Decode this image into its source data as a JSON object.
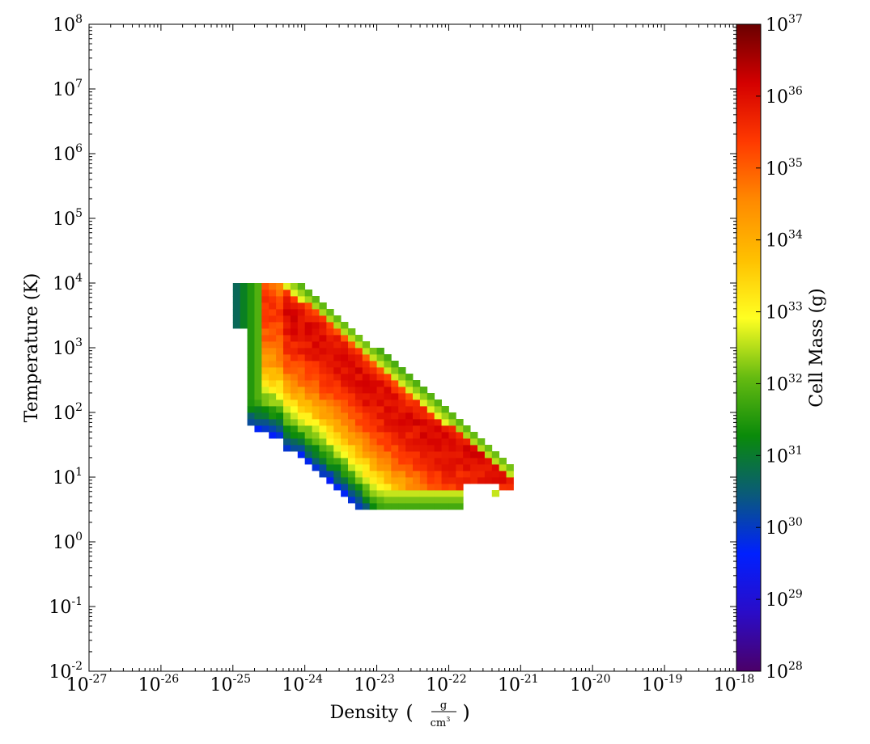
{
  "chart_data": {
    "type": "heatmap",
    "title": "",
    "xlabel": "Density",
    "xunit_num": "g",
    "xunit_den": "cm",
    "xunit_den_exp": "3",
    "ylabel": "Temperature  (K)",
    "xscale": "log",
    "yscale": "log",
    "xlim": [
      1e-27,
      1e-18
    ],
    "ylim": [
      0.01,
      100000000.0
    ],
    "xticks": [
      {
        "base": "10",
        "exp": "-27"
      },
      {
        "base": "10",
        "exp": "-26"
      },
      {
        "base": "10",
        "exp": "-25"
      },
      {
        "base": "10",
        "exp": "-24"
      },
      {
        "base": "10",
        "exp": "-23"
      },
      {
        "base": "10",
        "exp": "-22"
      },
      {
        "base": "10",
        "exp": "-21"
      },
      {
        "base": "10",
        "exp": "-20"
      },
      {
        "base": "10",
        "exp": "-19"
      },
      {
        "base": "10",
        "exp": "-18"
      }
    ],
    "yticks": [
      {
        "base": "10",
        "exp": "-2"
      },
      {
        "base": "10",
        "exp": "-1"
      },
      {
        "base": "10",
        "exp": "0"
      },
      {
        "base": "10",
        "exp": "1"
      },
      {
        "base": "10",
        "exp": "2"
      },
      {
        "base": "10",
        "exp": "3"
      },
      {
        "base": "10",
        "exp": "4"
      },
      {
        "base": "10",
        "exp": "5"
      },
      {
        "base": "10",
        "exp": "6"
      },
      {
        "base": "10",
        "exp": "7"
      },
      {
        "base": "10",
        "exp": "8"
      }
    ],
    "colorbar": {
      "label": "Cell Mass  (g)",
      "scale": "log",
      "range": [
        1e+28,
        1e+37
      ],
      "colormap": "gist_rainbow-like (purple-blue-green-yellow-orange-red-darkred)",
      "colors": [
        "#4b0068",
        "#2a0cc8",
        "#0020ff",
        "#0a5a7a",
        "#0a8a0a",
        "#66bb11",
        "#ffff22",
        "#ffc000",
        "#ff8a00",
        "#ff3a00",
        "#d40000",
        "#6a0000"
      ],
      "ticks": [
        {
          "base": "10",
          "exp": "28"
        },
        {
          "base": "10",
          "exp": "29"
        },
        {
          "base": "10",
          "exp": "30"
        },
        {
          "base": "10",
          "exp": "31"
        },
        {
          "base": "10",
          "exp": "32"
        },
        {
          "base": "10",
          "exp": "33"
        },
        {
          "base": "10",
          "exp": "34"
        },
        {
          "base": "10",
          "exp": "35"
        },
        {
          "base": "10",
          "exp": "36"
        },
        {
          "base": "10",
          "exp": "37"
        }
      ]
    },
    "distribution": {
      "description_points_log10": {
        "ridge_density": [
          -25.0,
          -24.5,
          -24.0,
          -23.5,
          -23.0,
          -22.5,
          -22.0,
          -21.5,
          -21.2
        ],
        "ridge_temperature": [
          3.9,
          3.7,
          3.4,
          2.9,
          2.35,
          1.9,
          1.55,
          1.35,
          1.25
        ]
      },
      "min_log_density": -25.0,
      "max_log_density": -20.8,
      "min_log_temperature": 0.5,
      "max_log_temperature": 4.0,
      "peak_log_mass": 36.0
    }
  }
}
